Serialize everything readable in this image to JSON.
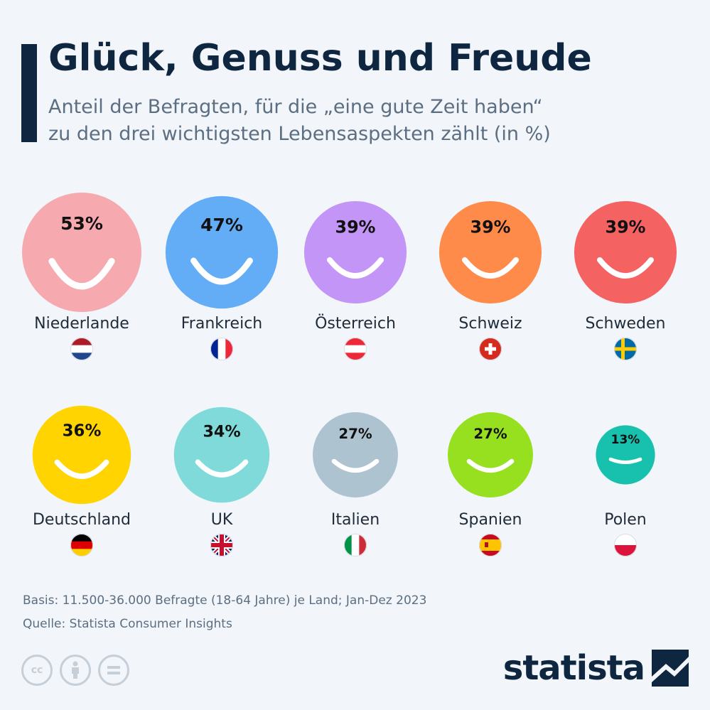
{
  "header": {
    "title": "Glück, Genuss und Freude",
    "subtitle_line1": "Anteil der Befragten, für die „eine gute Zeit haben“",
    "subtitle_line2": "zu den drei wichtigsten Lebensaspekten zählt (in %)"
  },
  "chart_data": {
    "type": "bubble",
    "title": "Glück, Genuss und Freude",
    "subtitle": "Anteil der Befragten, für die „eine gute Zeit haben“ zu den drei wichtigsten Lebensaspekten zählt (in %)",
    "unit": "%",
    "categories": [
      "Niederlande",
      "Frankreich",
      "Österreich",
      "Schweiz",
      "Schweden",
      "Deutschland",
      "UK",
      "Italien",
      "Spanien",
      "Polen"
    ],
    "values": [
      53,
      47,
      39,
      39,
      39,
      36,
      34,
      27,
      27,
      13
    ],
    "labels": [
      "53%",
      "47%",
      "39%",
      "39%",
      "39%",
      "36%",
      "34%",
      "27%",
      "27%",
      "13%"
    ],
    "colors": [
      "#f6a9ae",
      "#63acf6",
      "#c395f7",
      "#ff8b4a",
      "#f46262",
      "#ffd400",
      "#7fdad9",
      "#aec3d0",
      "#96e01f",
      "#18c1ae"
    ],
    "flags": [
      "flag-netherlands-icon",
      "flag-france-icon",
      "flag-austria-icon",
      "flag-switzerland-icon",
      "flag-sweden-icon",
      "flag-germany-icon",
      "flag-uk-icon",
      "flag-italy-icon",
      "flag-spain-icon",
      "flag-poland-icon"
    ]
  },
  "footer": {
    "basis": "Basis: 11.500-36.000 Befragte (18-64 Jahre) je Land; Jan-Dez 2023",
    "source": "Quelle: Statista Consumer Insights",
    "brand": "statista",
    "license_icons": [
      "cc-icon",
      "attribution-icon",
      "no-derivatives-icon"
    ]
  }
}
